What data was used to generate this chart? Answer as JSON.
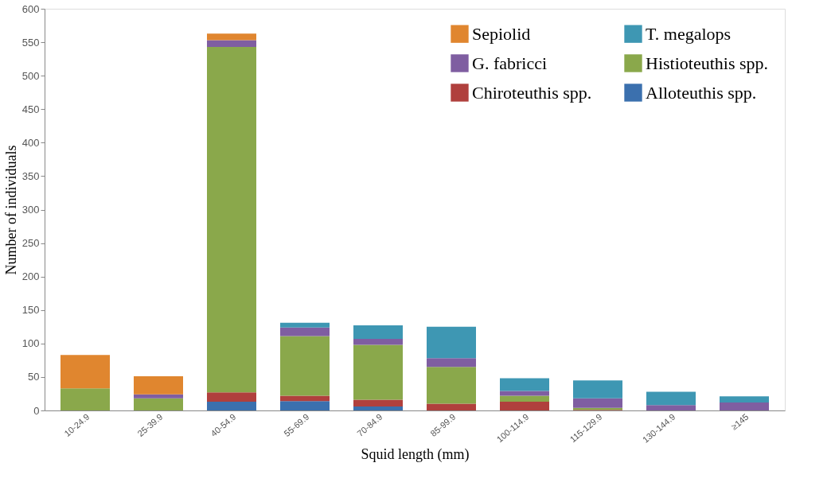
{
  "chart_data": {
    "type": "bar",
    "stacked": true,
    "xlabel": "Squid length (mm)",
    "ylabel": "Number of individuals",
    "categories": [
      "10-24.9",
      "25-39.9",
      "40-54.9",
      "55-69.9",
      "70-84.9",
      "85-99.9",
      "100-114.9",
      "115-129.9",
      "130-144.9",
      "≥145"
    ],
    "series": [
      {
        "name": "Alloteuthis spp.",
        "color": "#3b70ae",
        "values": [
          0,
          0,
          13,
          14,
          6,
          0,
          0,
          0,
          0,
          0
        ]
      },
      {
        "name": "Chiroteuthis spp.",
        "color": "#b0403d",
        "values": [
          0,
          0,
          14,
          8,
          10,
          10,
          13,
          1,
          0,
          0
        ]
      },
      {
        "name": "Histioteuthis spp.",
        "color": "#8aa84b",
        "values": [
          33,
          18,
          516,
          89,
          82,
          55,
          9,
          3,
          0,
          0
        ]
      },
      {
        "name": "G. fabricci",
        "color": "#7f5ea1",
        "values": [
          0,
          6,
          10,
          13,
          9,
          13,
          7,
          14,
          8,
          12
        ]
      },
      {
        "name": "T. megalops",
        "color": "#3e97b3",
        "values": [
          0,
          0,
          0,
          7,
          20,
          47,
          19,
          27,
          20,
          9
        ]
      },
      {
        "name": "Sepiolid",
        "color": "#e0862f",
        "values": [
          50,
          27,
          10,
          0,
          0,
          0,
          0,
          0,
          0,
          0
        ]
      }
    ],
    "ylim": [
      0,
      600
    ],
    "yticks": [
      0,
      50,
      100,
      150,
      200,
      250,
      300,
      350,
      400,
      450,
      500,
      550,
      600
    ],
    "grid": false,
    "legend": "top right"
  }
}
